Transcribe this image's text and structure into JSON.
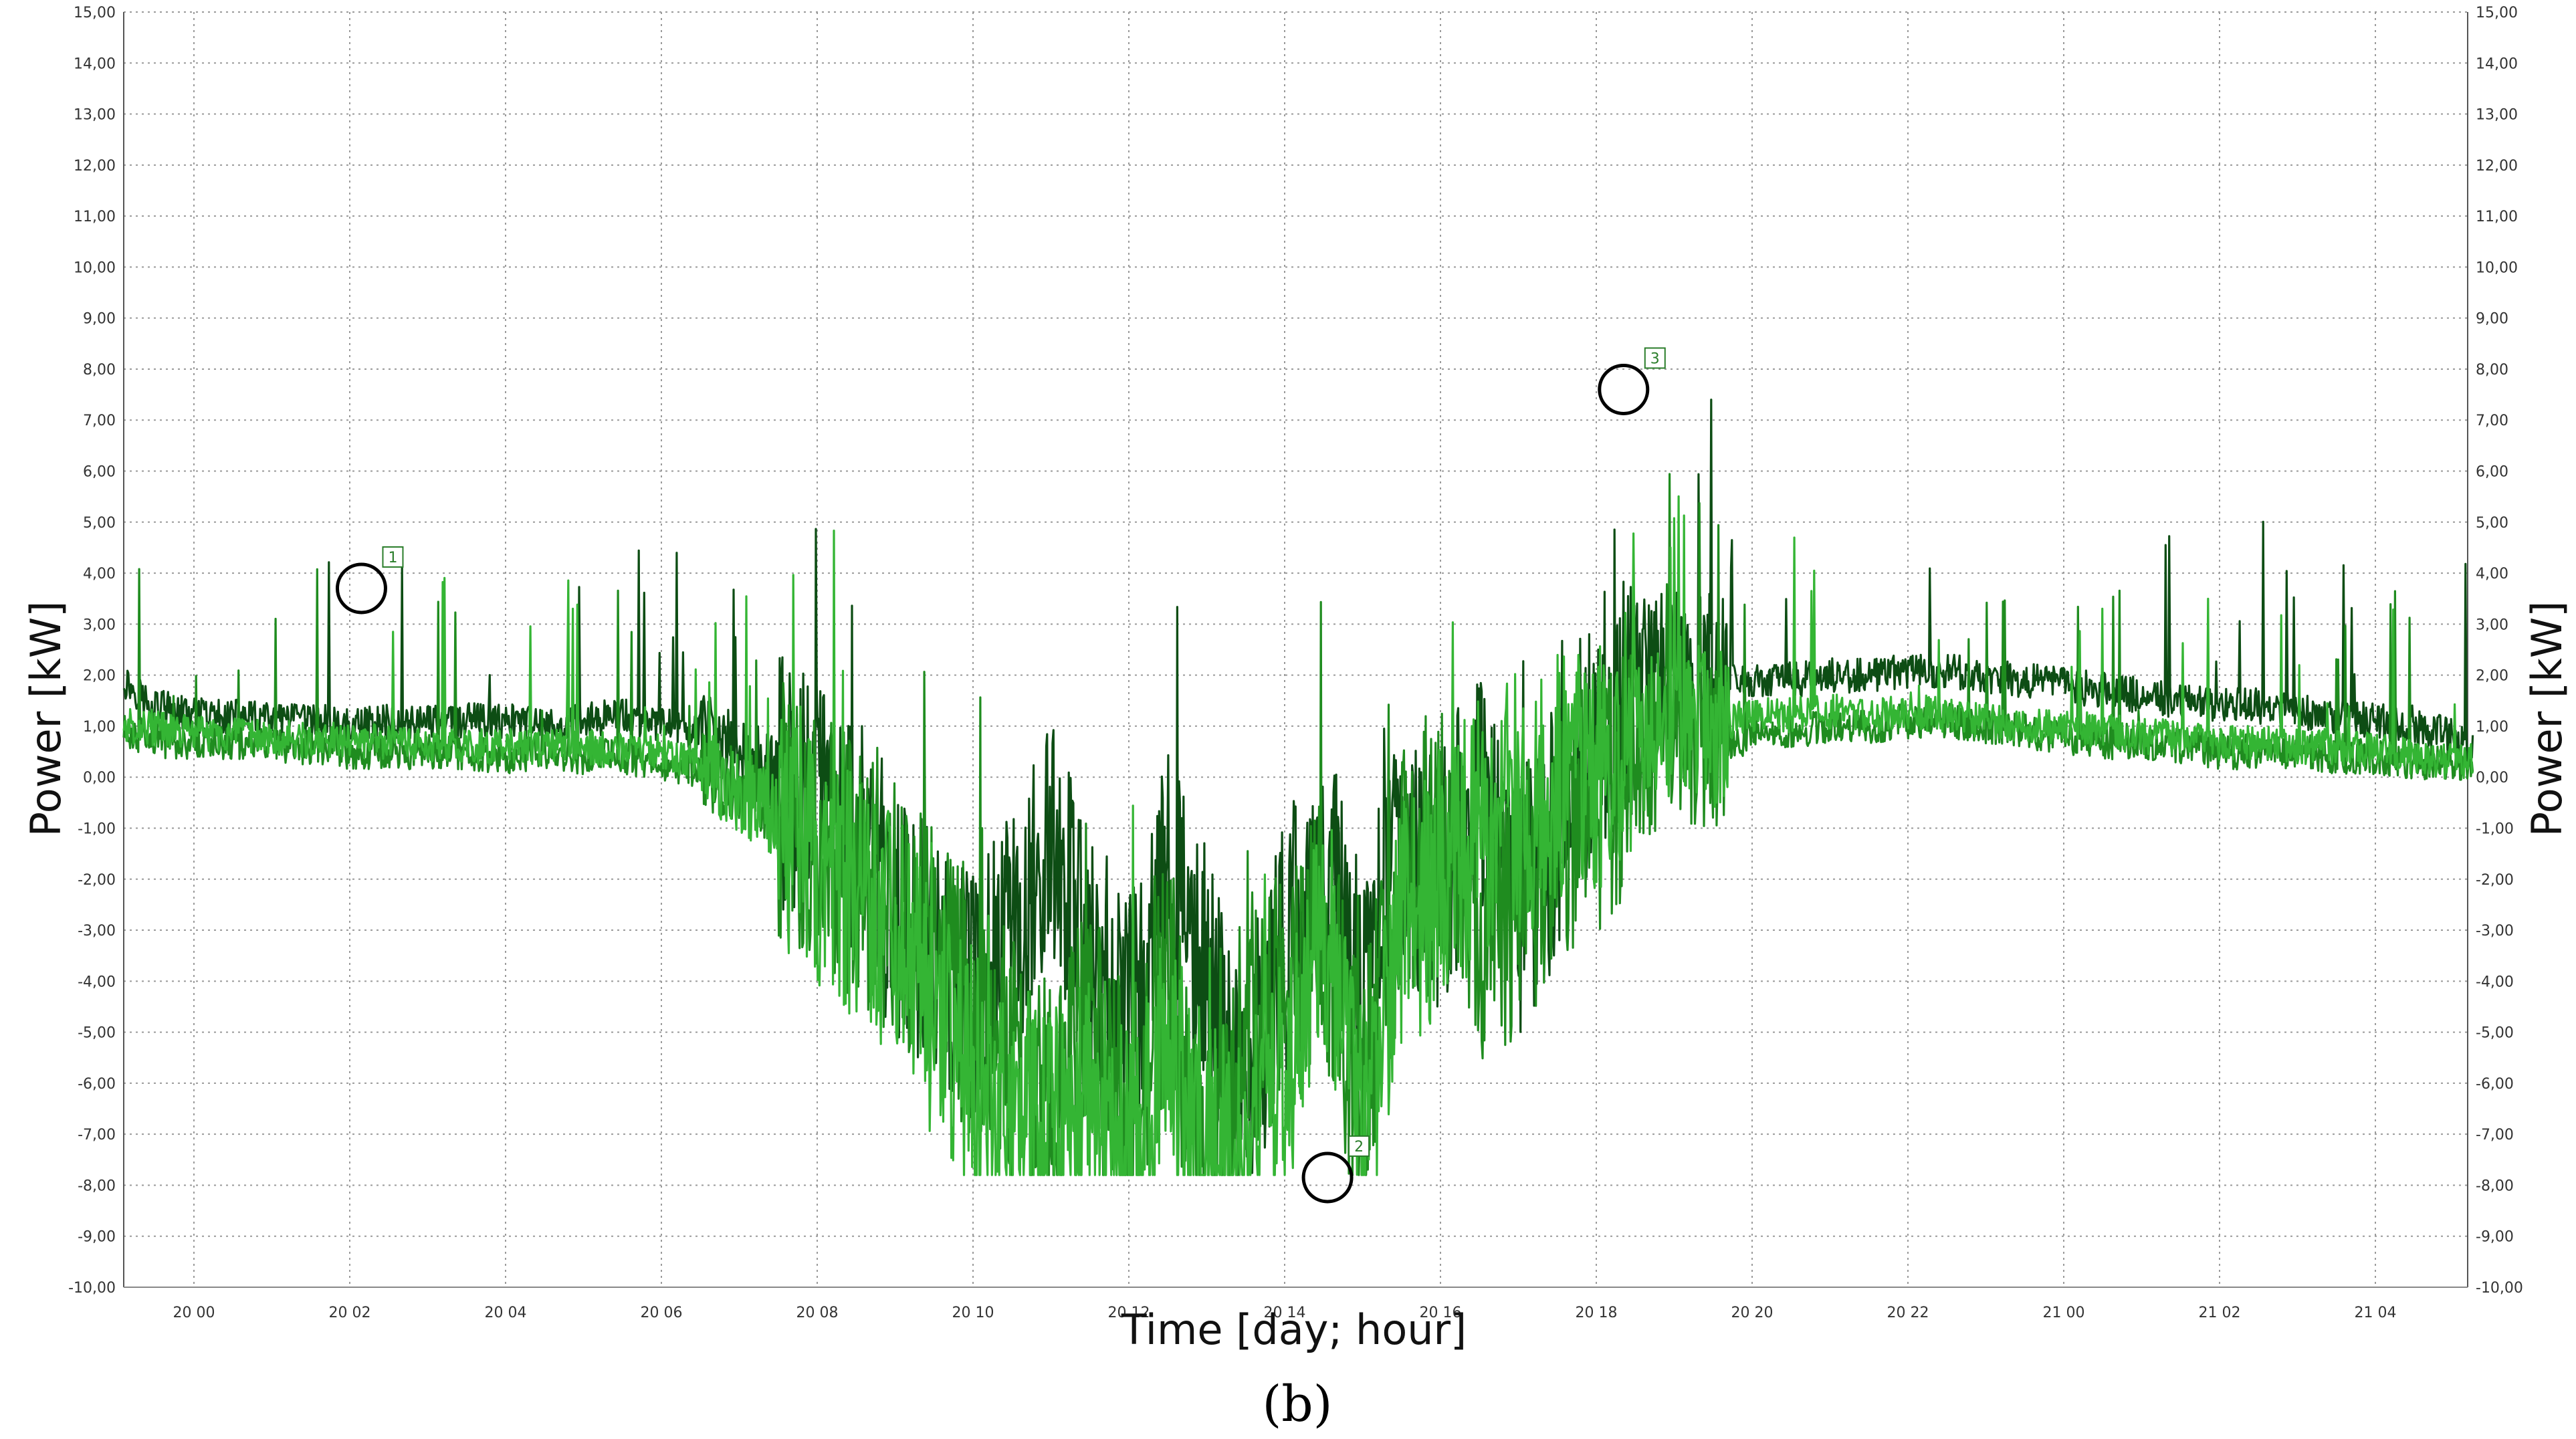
{
  "chart_data": {
    "type": "line",
    "xlabel": "Time [day; hour]",
    "ylabel": "Power [kW]",
    "ylabel_right": "Power [kW]",
    "ylim": [
      -10,
      15
    ],
    "y_ticks": [
      "15,00",
      "14,00",
      "13,00",
      "12,00",
      "11,00",
      "10,00",
      "9,00",
      "8,00",
      "7,00",
      "6,00",
      "5,00",
      "4,00",
      "3,00",
      "2,00",
      "1,00",
      "0,00",
      "-1,00",
      "-2,00",
      "-3,00",
      "-4,00",
      "-5,00",
      "-6,00",
      "-7,00",
      "-8,00",
      "-9,00",
      "-10,00"
    ],
    "x_ticks": [
      "20 00",
      "20 02",
      "20 04",
      "20 06",
      "20 08",
      "20 10",
      "20 12",
      "20 14",
      "20 16",
      "20 18",
      "20 20",
      "20 22",
      "21 00",
      "21 02",
      "21 04"
    ],
    "x_unit": "hours from 20 00",
    "xlim": [
      -0.9,
      29.25
    ],
    "grid": true,
    "legend": "none",
    "caption": "(b)",
    "series": [
      {
        "color": "#0d4d14",
        "values": [
          [
            -0.9,
            1.9
          ],
          [
            -0.6,
            1.5
          ],
          [
            -0.3,
            1.3
          ],
          [
            0,
            1.2
          ],
          [
            0.5,
            1.2
          ],
          [
            1,
            1.1
          ],
          [
            1.5,
            1.1
          ],
          [
            2,
            1.0
          ],
          [
            2.5,
            1.1
          ],
          [
            3,
            1.1
          ],
          [
            3.5,
            1.1
          ],
          [
            4,
            1.1
          ],
          [
            4.5,
            1.0
          ],
          [
            5,
            1.1
          ],
          [
            5.5,
            1.2
          ],
          [
            6,
            1.0
          ],
          [
            6.5,
            0.9
          ],
          [
            7,
            0.5
          ],
          [
            7.5,
            0.0
          ],
          [
            8,
            -0.5
          ],
          [
            8.5,
            -1.2
          ],
          [
            9,
            -2.5
          ],
          [
            9.5,
            -3.5
          ],
          [
            10,
            -4.3
          ],
          [
            10.5,
            -3.0
          ],
          [
            11,
            -1.5
          ],
          [
            11.5,
            -3.5
          ],
          [
            12,
            -5.0
          ],
          [
            12.5,
            -2.0
          ],
          [
            13,
            -4.0
          ],
          [
            13.5,
            -6.0
          ],
          [
            14,
            -3.5
          ],
          [
            14.5,
            -1.5
          ],
          [
            15,
            -4.0
          ],
          [
            15.5,
            -1.5
          ],
          [
            16,
            -2.0
          ],
          [
            16.5,
            0.0
          ],
          [
            17,
            -2.5
          ],
          [
            17.5,
            -1.0
          ],
          [
            18,
            1.0
          ],
          [
            18.5,
            1.8
          ],
          [
            19,
            2.3
          ],
          [
            19.5,
            2.0
          ],
          [
            20,
            1.9
          ],
          [
            20.5,
            1.9
          ],
          [
            21,
            2.0
          ],
          [
            21.5,
            2.0
          ],
          [
            22,
            2.1
          ],
          [
            22.5,
            2.1
          ],
          [
            23,
            2.0
          ],
          [
            23.5,
            1.9
          ],
          [
            24,
            1.8
          ],
          [
            24.5,
            1.7
          ],
          [
            25,
            1.6
          ],
          [
            25.5,
            1.5
          ],
          [
            26,
            1.4
          ],
          [
            26.5,
            1.4
          ],
          [
            27,
            1.3
          ],
          [
            27.5,
            1.2
          ],
          [
            28,
            1.1
          ],
          [
            28.5,
            1.0
          ],
          [
            29,
            0.8
          ],
          [
            29.25,
            0.5
          ]
        ]
      },
      {
        "color": "#1f8c1f",
        "values": [
          [
            -0.9,
            0.9
          ],
          [
            -0.6,
            0.8
          ],
          [
            -0.3,
            0.7
          ],
          [
            0,
            0.7
          ],
          [
            0.5,
            0.7
          ],
          [
            1,
            0.6
          ],
          [
            1.5,
            0.6
          ],
          [
            2,
            0.5
          ],
          [
            2.5,
            0.5
          ],
          [
            3,
            0.5
          ],
          [
            3.5,
            0.5
          ],
          [
            4,
            0.4
          ],
          [
            4.5,
            0.5
          ],
          [
            5,
            0.4
          ],
          [
            5.5,
            0.4
          ],
          [
            6,
            0.3
          ],
          [
            6.5,
            0.1
          ],
          [
            7,
            -0.1
          ],
          [
            7.5,
            -0.6
          ],
          [
            8,
            -1.2
          ],
          [
            8.5,
            -1.9
          ],
          [
            9,
            -2.6
          ],
          [
            9.5,
            -3.5
          ],
          [
            10,
            -4.5
          ],
          [
            10.5,
            -5.5
          ],
          [
            11,
            -6.5
          ],
          [
            11.5,
            -5.0
          ],
          [
            12,
            -7.0
          ],
          [
            12.5,
            -4.0
          ],
          [
            13,
            -7.5
          ],
          [
            13.5,
            -5.0
          ],
          [
            14,
            -4.0
          ],
          [
            14.5,
            -3.0
          ],
          [
            15,
            -6.5
          ],
          [
            15.5,
            -2.0
          ],
          [
            16,
            -1.0
          ],
          [
            16.5,
            -3.0
          ],
          [
            17,
            -2.5
          ],
          [
            17.5,
            -1.5
          ],
          [
            18,
            -0.5
          ],
          [
            18.5,
            0.3
          ],
          [
            19,
            0.7
          ],
          [
            19.5,
            0.6
          ],
          [
            20,
            0.8
          ],
          [
            20.5,
            0.9
          ],
          [
            21,
            1.0
          ],
          [
            21.5,
            1.0
          ],
          [
            22,
            1.1
          ],
          [
            22.5,
            1.1
          ],
          [
            23,
            1.0
          ],
          [
            23.5,
            0.9
          ],
          [
            24,
            0.8
          ],
          [
            24.5,
            0.7
          ],
          [
            25,
            0.7
          ],
          [
            25.5,
            0.6
          ],
          [
            26,
            0.5
          ],
          [
            26.5,
            0.5
          ],
          [
            27,
            0.5
          ],
          [
            27.5,
            0.4
          ],
          [
            28,
            0.4
          ],
          [
            28.5,
            0.3
          ],
          [
            29,
            0.3
          ],
          [
            29.25,
            0.3
          ]
        ]
      },
      {
        "color": "#34b534",
        "values": [
          [
            -0.9,
            1.0
          ],
          [
            -0.6,
            1.0
          ],
          [
            -0.3,
            0.9
          ],
          [
            0,
            0.9
          ],
          [
            0.5,
            0.8
          ],
          [
            1,
            0.8
          ],
          [
            1.5,
            0.7
          ],
          [
            2,
            0.7
          ],
          [
            2.5,
            0.7
          ],
          [
            3,
            0.6
          ],
          [
            3.5,
            0.6
          ],
          [
            4,
            0.6
          ],
          [
            4.5,
            0.6
          ],
          [
            5,
            0.6
          ],
          [
            5.5,
            0.5
          ],
          [
            6,
            0.5
          ],
          [
            6.5,
            0.2
          ],
          [
            7,
            -0.3
          ],
          [
            7.5,
            -0.8
          ],
          [
            8,
            -1.5
          ],
          [
            8.5,
            -2.2
          ],
          [
            9,
            -3.2
          ],
          [
            9.5,
            -4.5
          ],
          [
            10,
            -5.8
          ],
          [
            10.5,
            -6.8
          ],
          [
            11,
            -7.2
          ],
          [
            11.5,
            -6.5
          ],
          [
            12,
            -7.3
          ],
          [
            12.5,
            -5.5
          ],
          [
            13,
            -7.6
          ],
          [
            13.5,
            -7.0
          ],
          [
            14,
            -6.0
          ],
          [
            14.5,
            -2.5
          ],
          [
            15,
            -7.0
          ],
          [
            15.5,
            -3.0
          ],
          [
            16,
            -2.0
          ],
          [
            16.5,
            -1.0
          ],
          [
            17,
            -0.5
          ],
          [
            17.5,
            -0.2
          ],
          [
            18,
            0.3
          ],
          [
            18.5,
            0.8
          ],
          [
            19,
            1.2
          ],
          [
            19.5,
            1.0
          ],
          [
            20,
            1.2
          ],
          [
            20.5,
            1.2
          ],
          [
            21,
            1.3
          ],
          [
            21.5,
            1.2
          ],
          [
            22,
            1.3
          ],
          [
            22.5,
            1.2
          ],
          [
            23,
            1.1
          ],
          [
            23.5,
            1.0
          ],
          [
            24,
            1.0
          ],
          [
            24.5,
            0.9
          ],
          [
            25,
            0.8
          ],
          [
            25.5,
            0.8
          ],
          [
            26,
            0.7
          ],
          [
            26.5,
            0.7
          ],
          [
            27,
            0.6
          ],
          [
            27.5,
            0.6
          ],
          [
            28,
            0.5
          ],
          [
            28.5,
            0.4
          ],
          [
            29,
            0.3
          ],
          [
            29.25,
            0.3
          ]
        ]
      }
    ],
    "annotations": [
      {
        "label": "1",
        "x": 2.15,
        "y": 3.7
      },
      {
        "label": "2",
        "x": 14.55,
        "y": -7.85
      },
      {
        "label": "3",
        "x": 18.35,
        "y": 7.6
      }
    ]
  }
}
